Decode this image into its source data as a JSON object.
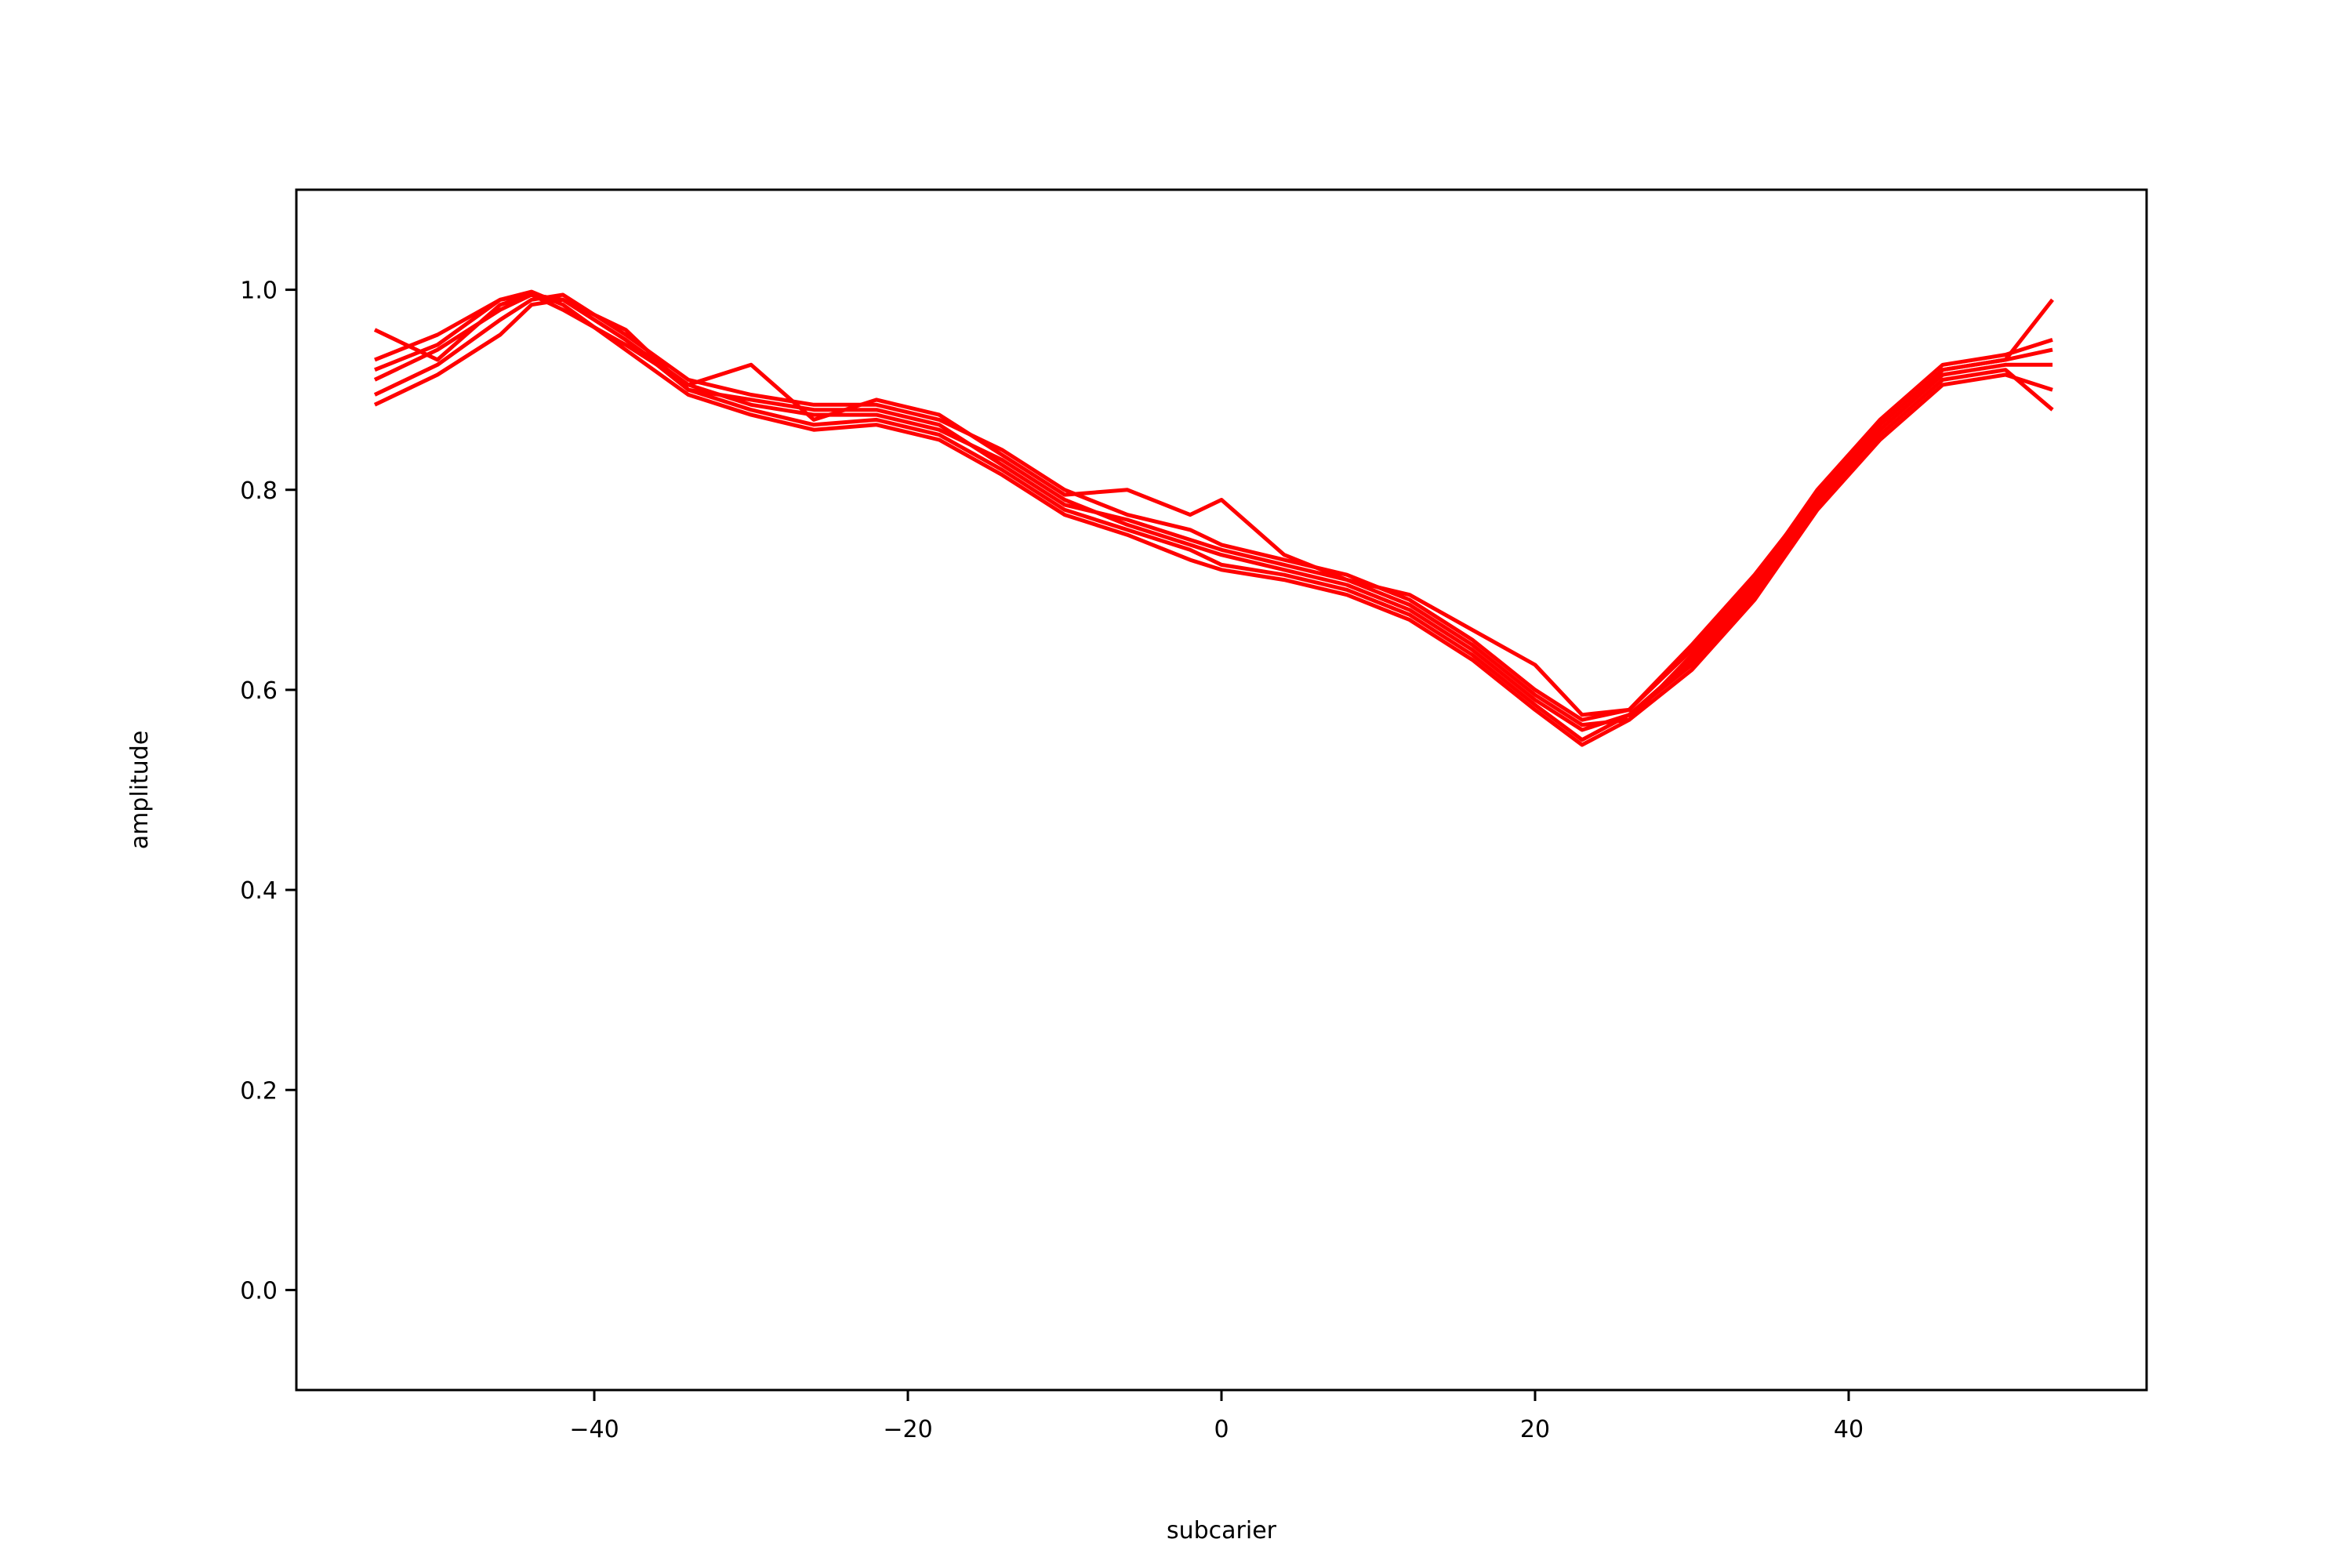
{
  "chart_data": {
    "type": "line",
    "title": "",
    "xlabel": "subcarier",
    "ylabel": "amplitude",
    "xlim": [
      -59,
      59
    ],
    "ylim": [
      -0.1,
      1.1
    ],
    "x_ticks": [
      -40,
      -20,
      0,
      20,
      40
    ],
    "x_tick_labels": [
      "−40",
      "−20",
      "0",
      "20",
      "40"
    ],
    "y_ticks": [
      0.0,
      0.2,
      0.4,
      0.6,
      0.8,
      1.0
    ],
    "y_tick_labels": [
      "0.0",
      "0.2",
      "0.4",
      "0.6",
      "0.8",
      "1.0"
    ],
    "grid": false,
    "line_color": "#ff0000",
    "x": [
      -54,
      -50,
      -46,
      -44,
      -42,
      -38,
      -34,
      -30,
      -26,
      -22,
      -18,
      -14,
      -10,
      -6,
      -2,
      0,
      4,
      8,
      12,
      16,
      20,
      23,
      26,
      30,
      34,
      38,
      42,
      46,
      50,
      53
    ],
    "series": [
      {
        "values": [
          0.91,
          0.94,
          0.98,
          0.995,
          0.99,
          0.95,
          0.905,
          0.885,
          0.875,
          0.875,
          0.86,
          0.83,
          0.79,
          0.765,
          0.745,
          0.735,
          0.72,
          0.705,
          0.68,
          0.64,
          0.59,
          0.56,
          0.575,
          0.63,
          0.7,
          0.79,
          0.86,
          0.915,
          0.925,
          0.925
        ]
      },
      {
        "values": [
          0.93,
          0.955,
          0.99,
          0.998,
          0.985,
          0.94,
          0.895,
          0.875,
          0.86,
          0.865,
          0.85,
          0.815,
          0.775,
          0.755,
          0.73,
          0.72,
          0.71,
          0.695,
          0.67,
          0.63,
          0.58,
          0.545,
          0.57,
          0.62,
          0.69,
          0.78,
          0.85,
          0.905,
          0.915,
          0.9
        ]
      },
      {
        "values": [
          0.895,
          0.925,
          0.97,
          0.99,
          0.995,
          0.955,
          0.91,
          0.895,
          0.885,
          0.885,
          0.87,
          0.84,
          0.8,
          0.775,
          0.76,
          0.745,
          0.73,
          0.715,
          0.69,
          0.65,
          0.6,
          0.57,
          0.58,
          0.64,
          0.71,
          0.8,
          0.87,
          0.925,
          0.935,
          0.95
        ]
      },
      {
        "values": [
          0.96,
          0.93,
          0.985,
          0.995,
          0.98,
          0.945,
          0.905,
          0.925,
          0.87,
          0.89,
          0.875,
          0.835,
          0.795,
          0.8,
          0.775,
          0.79,
          0.735,
          0.71,
          0.695,
          0.66,
          0.625,
          0.575,
          0.58,
          0.645,
          0.715,
          0.795,
          0.865,
          0.92,
          0.93,
          0.99
        ]
      },
      {
        "values": [
          0.885,
          0.915,
          0.955,
          0.985,
          0.99,
          0.95,
          0.9,
          0.88,
          0.865,
          0.87,
          0.855,
          0.82,
          0.78,
          0.76,
          0.74,
          0.725,
          0.715,
          0.7,
          0.675,
          0.635,
          0.585,
          0.55,
          0.575,
          0.625,
          0.695,
          0.785,
          0.855,
          0.91,
          0.92,
          0.88
        ]
      },
      {
        "values": [
          0.92,
          0.945,
          0.99,
          0.995,
          0.99,
          0.96,
          0.9,
          0.89,
          0.88,
          0.88,
          0.865,
          0.825,
          0.785,
          0.77,
          0.75,
          0.74,
          0.725,
          0.71,
          0.685,
          0.645,
          0.595,
          0.565,
          0.57,
          0.635,
          0.705,
          0.795,
          0.865,
          0.92,
          0.93,
          0.94
        ]
      }
    ]
  }
}
